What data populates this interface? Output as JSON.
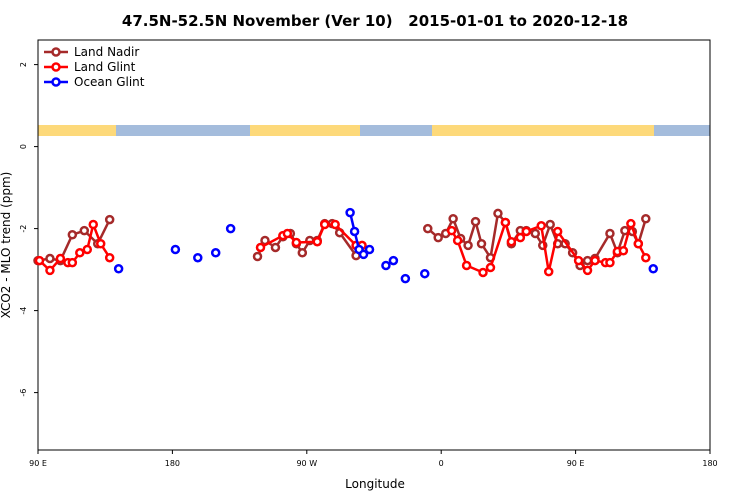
{
  "chart_data": {
    "type": "line",
    "title": "47.5N-52.5N November (Ver 10)   2015-01-01 to 2020-12-18",
    "xlabel": "Longitude",
    "ylabel": "XCO2 - MLO trend (ppm)",
    "xlim": [
      90,
      540
    ],
    "xticks": [
      {
        "value": 90,
        "label": "90 E"
      },
      180,
      {
        "value": 270,
        "label": "90 W"
      },
      {
        "value": 360,
        "label": "0"
      },
      {
        "value": 450,
        "label": "90 E"
      },
      {
        "value": 540,
        "label": "180"
      }
    ],
    "ylim": [
      -7.4,
      2.6
    ],
    "yticks": [
      2,
      0,
      -2,
      -4,
      -6
    ],
    "legend": "top-left",
    "series": [
      {
        "name": "Land Nadir",
        "color": "#a52a2a",
        "x": [
          90,
          98,
          105,
          113,
          121,
          130,
          138,
          null,
          237,
          242,
          249,
          254,
          259,
          263,
          267,
          272,
          277,
          282,
          287,
          292,
          303,
          null,
          351,
          358,
          363,
          368,
          373,
          378,
          383,
          387,
          393,
          398,
          403,
          407,
          413,
          417,
          423,
          428,
          433,
          438,
          443,
          448,
          453,
          458,
          463,
          473,
          478,
          483,
          488,
          492,
          497
        ],
        "values": [
          -2.78,
          -2.73,
          -2.78,
          -2.15,
          -2.05,
          -2.37,
          -1.78,
          null,
          -2.68,
          -2.29,
          -2.46,
          -2.2,
          -2.12,
          -2.37,
          -2.59,
          -2.29,
          -2.29,
          -1.88,
          -1.88,
          -2.1,
          -2.66,
          null,
          -2.0,
          -2.22,
          -2.12,
          -1.76,
          -2.24,
          -2.41,
          -1.83,
          -2.37,
          -2.71,
          -1.63,
          -1.85,
          -2.37,
          -2.05,
          -2.05,
          -2.12,
          -2.41,
          -1.9,
          -2.37,
          -2.37,
          -2.59,
          -2.9,
          -2.78,
          -2.73,
          -2.12,
          -2.59,
          -2.05,
          -2.07,
          -2.37,
          -1.76
        ]
      },
      {
        "name": "Land Glint",
        "color": "#ff0000",
        "x": [
          91,
          98,
          105,
          110,
          113,
          118,
          123,
          127,
          132,
          138,
          null,
          239,
          254,
          257,
          263,
          277,
          282,
          289,
          303,
          307,
          null,
          367,
          371,
          377,
          388,
          393,
          403,
          407,
          413,
          417,
          427,
          432,
          438,
          452,
          458,
          463,
          470,
          473,
          478,
          482,
          487,
          492,
          497
        ],
        "values": [
          -2.78,
          -3.02,
          -2.73,
          -2.83,
          -2.83,
          -2.59,
          -2.51,
          -1.9,
          -2.37,
          -2.71,
          null,
          -2.46,
          -2.17,
          -2.12,
          -2.34,
          -2.32,
          -1.9,
          -1.9,
          -2.41,
          -2.41,
          null,
          -2.05,
          -2.29,
          -2.9,
          -3.07,
          -2.95,
          -1.85,
          -2.32,
          -2.22,
          -2.07,
          -1.93,
          -3.05,
          -2.07,
          -2.78,
          -3.02,
          -2.78,
          -2.83,
          -2.83,
          -2.56,
          -2.54,
          -1.88,
          -2.37,
          -2.71
        ]
      },
      {
        "name": "Ocean Glint",
        "color": "#0000ff",
        "x": [
          144,
          null,
          182,
          null,
          197,
          null,
          209,
          null,
          219,
          null,
          299,
          302,
          305,
          308,
          312,
          null,
          323,
          328,
          null,
          336,
          null,
          349,
          null,
          502
        ],
        "values": [
          -2.98,
          null,
          -2.51,
          null,
          -2.71,
          null,
          -2.59,
          null,
          -2.0,
          null,
          -1.61,
          -2.07,
          -2.51,
          -2.63,
          -2.51,
          null,
          -2.9,
          -2.78,
          null,
          -3.22,
          null,
          -3.1,
          null,
          -2.98
        ]
      }
    ]
  }
}
